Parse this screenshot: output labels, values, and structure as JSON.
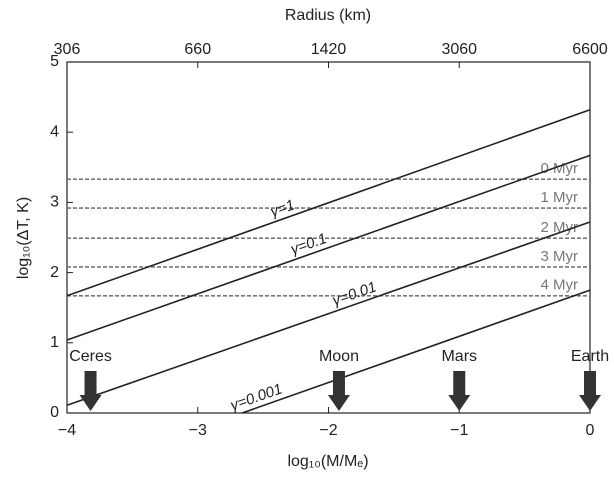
{
  "chart_data": {
    "type": "line",
    "x2label": "Radius (km)",
    "xlabel": "log₁₀(M/Mₑ)",
    "ylabel": "log₁₀(ΔT, K)",
    "xlim": [
      -4,
      0
    ],
    "ylim": [
      0,
      5
    ],
    "xticks": [
      {
        "value": -4,
        "label": "−4"
      },
      {
        "value": -3,
        "label": "−3"
      },
      {
        "value": -2,
        "label": "−2"
      },
      {
        "value": -1,
        "label": "−1"
      },
      0
    ],
    "x2ticks": [
      {
        "value": -4,
        "label": "306"
      },
      {
        "value": -3,
        "label": "660"
      },
      {
        "value": -2,
        "label": "1420"
      },
      {
        "value": -1,
        "label": "3060"
      },
      {
        "value": 0,
        "label": "6600"
      }
    ],
    "yticks": [
      0,
      1,
      2,
      3,
      4,
      5
    ],
    "series": [
      {
        "name": "γ=1",
        "color": "#222222",
        "x": [
          -4,
          0
        ],
        "values": [
          1.67,
          4.32
        ]
      },
      {
        "name": "γ=0.1",
        "color": "#222222",
        "x": [
          -4,
          0
        ],
        "values": [
          1.04,
          3.67
        ]
      },
      {
        "name": "γ=0.01",
        "color": "#222222",
        "x": [
          -4,
          0
        ],
        "values": [
          0.11,
          2.72
        ]
      },
      {
        "name": "γ=0.001",
        "color": "#222222",
        "x": [
          -2.66,
          0
        ],
        "values": [
          0,
          1.75
        ]
      }
    ],
    "hlines": [
      {
        "label": "0 Myr",
        "value": 3.33
      },
      {
        "label": "1 Myr",
        "value": 2.92
      },
      {
        "label": "2 Myr",
        "value": 2.49
      },
      {
        "label": "3 Myr",
        "value": 2.08
      },
      {
        "label": "4 Myr",
        "value": 1.67
      }
    ],
    "hline_color": "#777777",
    "markers": [
      {
        "label": "Ceres",
        "x": -3.82
      },
      {
        "label": "Moon",
        "x": -1.92
      },
      {
        "label": "Mars",
        "x": -1
      },
      {
        "label": "Earth",
        "x": 0
      }
    ],
    "marker_color": "#333333"
  }
}
